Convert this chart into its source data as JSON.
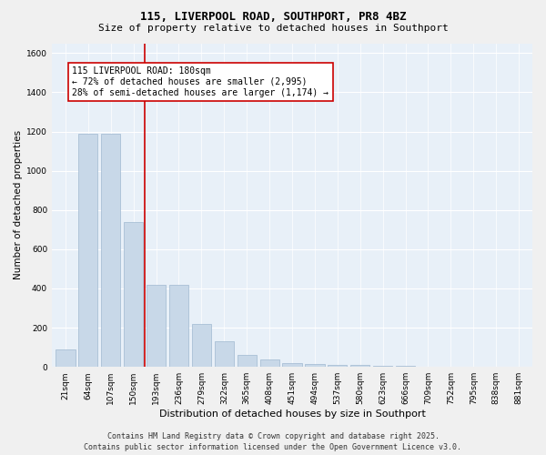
{
  "title": "115, LIVERPOOL ROAD, SOUTHPORT, PR8 4BZ",
  "subtitle": "Size of property relative to detached houses in Southport",
  "xlabel": "Distribution of detached houses by size in Southport",
  "ylabel": "Number of detached properties",
  "categories": [
    "21sqm",
    "64sqm",
    "107sqm",
    "150sqm",
    "193sqm",
    "236sqm",
    "279sqm",
    "322sqm",
    "365sqm",
    "408sqm",
    "451sqm",
    "494sqm",
    "537sqm",
    "580sqm",
    "623sqm",
    "666sqm",
    "709sqm",
    "752sqm",
    "795sqm",
    "838sqm",
    "881sqm"
  ],
  "values": [
    90,
    1190,
    1190,
    740,
    420,
    420,
    220,
    130,
    60,
    40,
    20,
    15,
    10,
    8,
    5,
    5,
    3,
    3,
    2,
    2,
    2
  ],
  "bar_color": "#c8d8e8",
  "bar_edge_color": "#a0b8d0",
  "vline_index": 3.5,
  "vline_color": "#cc0000",
  "annotation_text": "115 LIVERPOOL ROAD: 180sqm\n← 72% of detached houses are smaller (2,995)\n28% of semi-detached houses are larger (1,174) →",
  "annotation_box_color": "#ffffff",
  "annotation_box_edge": "#cc0000",
  "ylim": [
    0,
    1650
  ],
  "yticks": [
    0,
    200,
    400,
    600,
    800,
    1000,
    1200,
    1400,
    1600
  ],
  "bg_color": "#e8f0f8",
  "fig_bg_color": "#f0f0f0",
  "footer_line1": "Contains HM Land Registry data © Crown copyright and database right 2025.",
  "footer_line2": "Contains public sector information licensed under the Open Government Licence v3.0.",
  "title_fontsize": 9,
  "subtitle_fontsize": 8,
  "tick_fontsize": 6.5,
  "ylabel_fontsize": 7.5,
  "xlabel_fontsize": 8,
  "annotation_fontsize": 7,
  "footer_fontsize": 6
}
